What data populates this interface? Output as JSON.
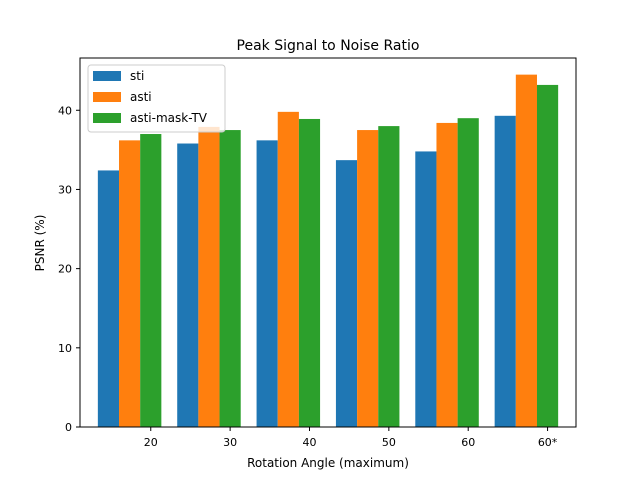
{
  "chart_data": {
    "type": "bar",
    "title": "Peak Signal to Noise Ratio",
    "xlabel": "Rotation Angle (maximum)",
    "ylabel": "PSNR (%)",
    "categories": [
      "20",
      "30",
      "40",
      "50",
      "60",
      "60*"
    ],
    "ylim": [
      0,
      46.6
    ],
    "yticks": [
      0,
      10,
      20,
      30,
      40
    ],
    "grid": false,
    "legend_position": "top-left",
    "series": [
      {
        "name": "sti",
        "color": "#1f77b4",
        "values": [
          32.4,
          35.8,
          36.2,
          33.7,
          34.8,
          39.3
        ]
      },
      {
        "name": "asti",
        "color": "#ff7f0e",
        "values": [
          36.2,
          37.9,
          39.8,
          37.5,
          38.4,
          44.5
        ]
      },
      {
        "name": "asti-mask-TV",
        "color": "#2ca02c",
        "values": [
          37.0,
          37.5,
          38.9,
          38.0,
          39.0,
          43.2
        ]
      }
    ]
  }
}
